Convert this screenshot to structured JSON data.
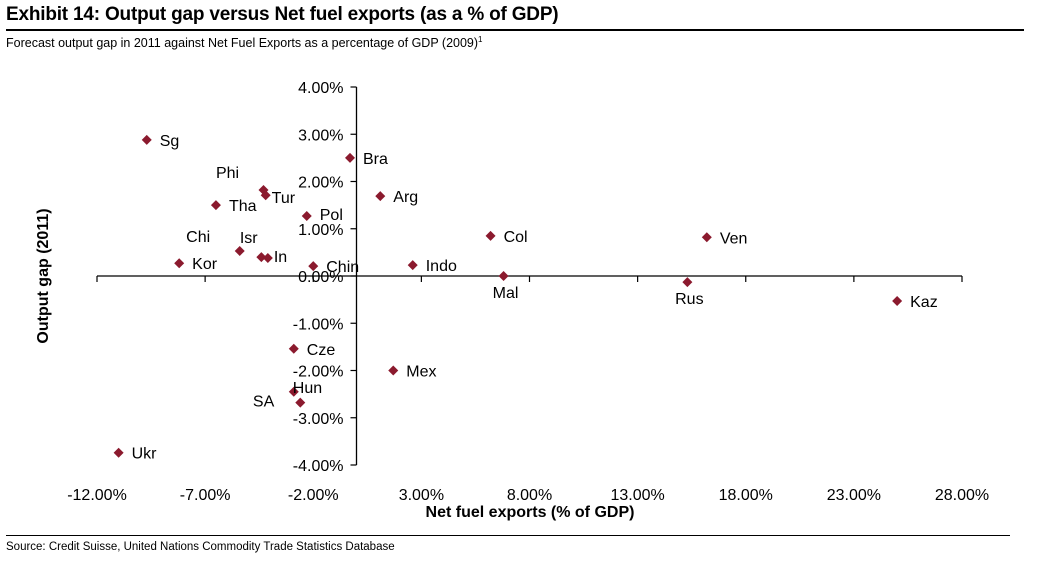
{
  "header": {
    "title": "Exhibit 14: Output gap versus Net fuel exports (as a % of GDP)",
    "subtitle": "Forecast output gap in 2011 against Net Fuel Exports as a percentage of GDP (2009)",
    "footnote_marker": "1"
  },
  "footer": {
    "source": "Source: Credit Suisse, United Nations Commodity Trade Statistics Database"
  },
  "chart_data": {
    "type": "scatter",
    "title": "Exhibit 14: Output gap versus Net fuel exports (as a % of GDP)",
    "xlabel": "Net fuel exports (% of GDP)",
    "ylabel": "Output gap (2011)",
    "xlim": [
      -12,
      28
    ],
    "ylim": [
      -4,
      4
    ],
    "x_ticks": [
      -12,
      -7,
      -2,
      3,
      8,
      13,
      18,
      23,
      28
    ],
    "x_tick_labels": [
      "-12.00%",
      "-7.00%",
      "-2.00%",
      "3.00%",
      "8.00%",
      "13.00%",
      "18.00%",
      "23.00%",
      "28.00%"
    ],
    "y_ticks": [
      4,
      3,
      2,
      1,
      0,
      -1,
      -2,
      -3,
      -4
    ],
    "y_tick_labels": [
      "4.00%",
      "3.00%",
      "2.00%",
      "1.00%",
      "0.00%",
      "-1.00%",
      "-2.00%",
      "-3.00%",
      "-4.00%"
    ],
    "grid": false,
    "legend": "none",
    "marker_color": "#8B1A2E",
    "points": [
      {
        "label": "Sg",
        "x": -9.7,
        "y": 2.88,
        "label_pos": "right"
      },
      {
        "label": "Bra",
        "x": -0.3,
        "y": 2.5,
        "label_pos": "right"
      },
      {
        "label": "Phi",
        "x": -4.3,
        "y": 1.82,
        "label_pos": "above-left"
      },
      {
        "label": "Tur",
        "x": -4.2,
        "y": 1.71,
        "label_pos": "right"
      },
      {
        "label": "Tha",
        "x": -6.5,
        "y": 1.5,
        "label_pos": "right"
      },
      {
        "label": "Arg",
        "x": 1.1,
        "y": 1.69,
        "label_pos": "right"
      },
      {
        "label": "Pol",
        "x": -2.3,
        "y": 1.27,
        "label_pos": "right"
      },
      {
        "label": "Col",
        "x": 6.2,
        "y": 0.85,
        "label_pos": "right"
      },
      {
        "label": "Ven",
        "x": 16.2,
        "y": 0.82,
        "label_pos": "right"
      },
      {
        "label": "Isr",
        "x": -5.4,
        "y": 0.53,
        "label_pos": "above"
      },
      {
        "label": "Chi",
        "x": -8.2,
        "y": 0.3,
        "label_pos": "above"
      },
      {
        "label": "Kor",
        "x": -8.2,
        "y": 0.27,
        "label_pos": "right"
      },
      {
        "label": "",
        "x": -4.4,
        "y": 0.4,
        "label_pos": "none"
      },
      {
        "label": "In",
        "x": -4.1,
        "y": 0.38,
        "label_pos": "right"
      },
      {
        "label": "Chin",
        "x": -2.0,
        "y": 0.21,
        "label_pos": "right"
      },
      {
        "label": "Indo",
        "x": 2.6,
        "y": 0.23,
        "label_pos": "right"
      },
      {
        "label": "Mal",
        "x": 6.8,
        "y": 0.0,
        "label_pos": "below"
      },
      {
        "label": "Rus",
        "x": 15.3,
        "y": -0.13,
        "label_pos": "below"
      },
      {
        "label": "Kaz",
        "x": 25.0,
        "y": -0.53,
        "label_pos": "right"
      },
      {
        "label": "Cze",
        "x": -2.9,
        "y": -1.54,
        "label_pos": "right"
      },
      {
        "label": "Mex",
        "x": 1.7,
        "y": -2.0,
        "label_pos": "right"
      },
      {
        "label": "Hun",
        "x": -2.9,
        "y": -2.45,
        "label_pos": "right-above"
      },
      {
        "label": "SA",
        "x": -2.6,
        "y": -2.68,
        "label_pos": "left"
      },
      {
        "label": "Ukr",
        "x": -11.0,
        "y": -3.74,
        "label_pos": "right"
      }
    ]
  }
}
